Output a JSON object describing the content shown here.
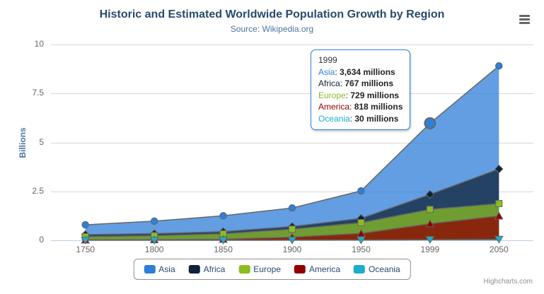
{
  "chart": {
    "title": "Historic and Estimated Worldwide Population Growth by Region",
    "subtitle": "Source: Wikipedia.org",
    "credits": "Highcharts.com"
  },
  "colors": {
    "asia": "#2f7ed8",
    "africa": "#0d233a",
    "europe": "#8bbc21",
    "america": "#910000",
    "oceania": "#1aadce",
    "series_line": "#666666",
    "gridline": "#d8d8d8",
    "axis_line": "#c0d0e0",
    "title_text": "#274b6d",
    "subtitle_text": "#4d759e",
    "axis_label_text": "#666666",
    "legend_border": "#909090",
    "credits_text": "#909090"
  },
  "chart_data": {
    "type": "area",
    "stacking": "normal",
    "title": "Historic and Estimated Worldwide Population Growth by Region",
    "subtitle": "Source: Wikipedia.org",
    "xlabel": "",
    "ylabel": "Billions",
    "unit": "millions",
    "ylim": [
      0,
      10
    ],
    "yticks": [
      0,
      2.5,
      5,
      7.5,
      10
    ],
    "grid": true,
    "legend_position": "bottom",
    "categories": [
      "1750",
      "1800",
      "1850",
      "1900",
      "1950",
      "1999",
      "2050"
    ],
    "series": [
      {
        "name": "Asia",
        "color": "#2f7ed8",
        "marker": "circle",
        "values": [
          502,
          635,
          809,
          947,
          1402,
          3634,
          5268
        ]
      },
      {
        "name": "Africa",
        "color": "#0d233a",
        "marker": "diamond",
        "values": [
          106,
          107,
          111,
          133,
          221,
          767,
          1766
        ]
      },
      {
        "name": "Europe",
        "color": "#8bbc21",
        "marker": "square",
        "values": [
          163,
          203,
          276,
          408,
          547,
          729,
          628
        ]
      },
      {
        "name": "America",
        "color": "#910000",
        "marker": "triangle",
        "values": [
          18,
          31,
          54,
          156,
          339,
          818,
          1201
        ]
      },
      {
        "name": "Oceania",
        "color": "#1aadce",
        "marker": "triangle-down",
        "values": [
          2,
          2,
          2,
          6,
          13,
          30,
          46
        ]
      }
    ],
    "stack_totals": [
      791,
      978,
      1252,
      1650,
      2522,
      5978,
      8909
    ]
  },
  "yaxis": {
    "title": "Billions",
    "labels": [
      "0",
      "2.5",
      "5",
      "7.5",
      "10"
    ]
  },
  "xaxis": {
    "labels": [
      "1750",
      "1800",
      "1850",
      "1900",
      "1950",
      "1999",
      "2050"
    ]
  },
  "tooltip": {
    "header": "1999",
    "hover_category": "1999",
    "hover_series": "Asia",
    "rows": [
      {
        "name": "Asia",
        "color": "#2f7ed8",
        "value": "3,634",
        "unit": "millions"
      },
      {
        "name": "Africa",
        "color": "#0d233a",
        "value": "767",
        "unit": "millions"
      },
      {
        "name": "Europe",
        "color": "#8bbc21",
        "value": "729",
        "unit": "millions"
      },
      {
        "name": "America",
        "color": "#910000",
        "value": "818",
        "unit": "millions"
      },
      {
        "name": "Oceania",
        "color": "#1aadce",
        "value": "30",
        "unit": "millions"
      }
    ]
  },
  "export_menu": {
    "icon": "hamburger-menu-icon"
  }
}
